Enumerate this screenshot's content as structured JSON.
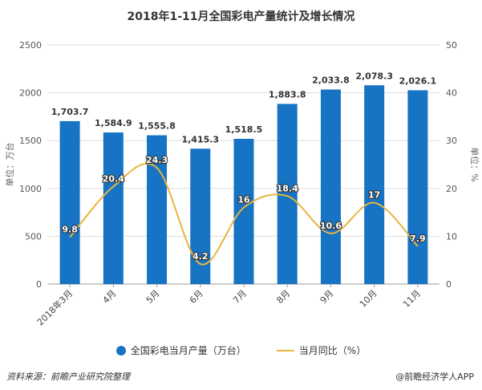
{
  "title": "2018年1-11月全国彩电产量统计及增长情况",
  "chart_data": {
    "type": "bar+line",
    "title": "2018年1-11月全国彩电产量统计及增长情况",
    "categories": [
      "2018年3月",
      "4月",
      "5月",
      "6月",
      "7月",
      "8月",
      "9月",
      "10月",
      "11月"
    ],
    "series": [
      {
        "name": "全国彩电当月产量（万台）",
        "type": "bar",
        "axis": "left",
        "color": "#1773c3",
        "values": [
          1703.7,
          1584.9,
          1555.8,
          1415.3,
          1518.5,
          1883.8,
          2033.8,
          2078.3,
          2026.1
        ],
        "labels": [
          "1,703.7",
          "1,584.9",
          "1,555.8",
          "1,415.3",
          "1,518.5",
          "1,883.8",
          "2,033.8",
          "2,078.3",
          "2,026.1"
        ]
      },
      {
        "name": "当月同比（%）",
        "type": "line",
        "axis": "right",
        "color": "#e8b540",
        "values": [
          9.8,
          20.4,
          24.3,
          4.2,
          16,
          18.4,
          10.6,
          17,
          7.9
        ],
        "labels": [
          "9.8",
          "20.4",
          "24.3",
          "4.2",
          "16",
          "18.4",
          "10.6",
          "17",
          "7.9"
        ]
      }
    ],
    "ylabel": "单位：万台",
    "ylim": [
      0,
      2500
    ],
    "yticks": [
      "0",
      "500",
      "1000",
      "1500",
      "2000",
      "2500"
    ],
    "y2label": "单位：%",
    "y2lim": [
      0,
      50
    ],
    "y2ticks": [
      "0",
      "10",
      "20",
      "30",
      "40",
      "50"
    ],
    "grid": true,
    "legend": "bottom"
  },
  "legend": {
    "bar": "全国彩电当月产量（万台）",
    "line": "当月同比（%）"
  },
  "footer": {
    "source": "资料来源：前瞻产业研究院整理",
    "app": "@前瞻经济学人APP"
  }
}
